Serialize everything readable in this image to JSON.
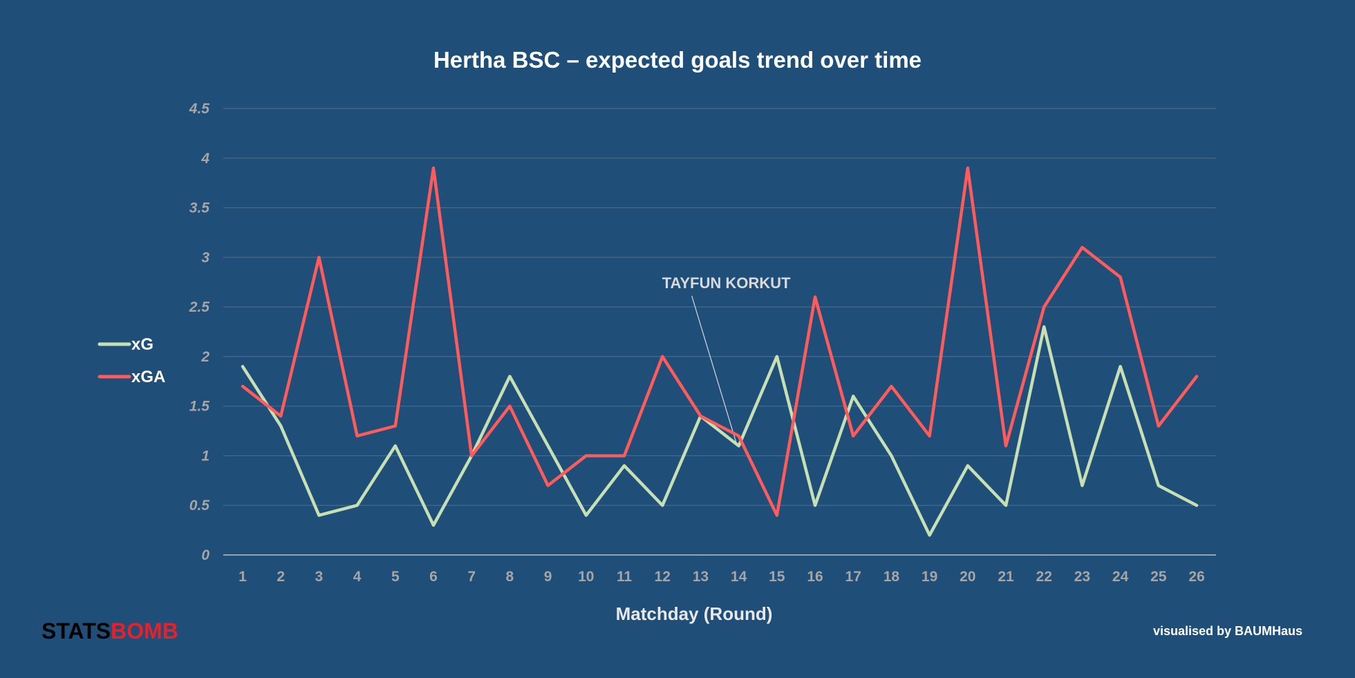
{
  "chart_data": {
    "type": "line",
    "title": "Hertha BSC – expected goals trend over time",
    "xlabel": "Matchday (Round)",
    "ylabel": "",
    "x": [
      1,
      2,
      3,
      4,
      5,
      6,
      7,
      8,
      9,
      10,
      11,
      12,
      13,
      14,
      15,
      16,
      17,
      18,
      19,
      20,
      21,
      22,
      23,
      24,
      25,
      26
    ],
    "ylim": [
      0,
      4.5
    ],
    "yticks": [
      0,
      0.5,
      1,
      1.5,
      2,
      2.5,
      3,
      3.5,
      4,
      4.5
    ],
    "ytick_labels": [
      "0",
      "0.5",
      "1",
      "1.5",
      "2",
      "2.5",
      "3",
      "3.5",
      "4",
      "4.5"
    ],
    "grid": true,
    "legend_position": "left",
    "series": [
      {
        "name": "xG",
        "color": "#c6e0b4",
        "values": [
          1.9,
          1.3,
          0.4,
          0.5,
          1.1,
          0.3,
          1.0,
          1.8,
          1.1,
          0.4,
          0.9,
          0.5,
          1.4,
          1.1,
          2.0,
          0.5,
          1.6,
          1.0,
          0.2,
          0.9,
          0.5,
          2.3,
          0.7,
          1.9,
          0.7,
          0.5
        ]
      },
      {
        "name": "xGA",
        "color": "#ff5b5b",
        "values": [
          1.7,
          1.4,
          3.0,
          1.2,
          1.3,
          3.9,
          1.0,
          1.5,
          0.7,
          1.0,
          1.0,
          2.0,
          1.4,
          1.2,
          0.4,
          2.6,
          1.2,
          1.7,
          1.2,
          3.9,
          1.1,
          2.5,
          3.1,
          2.8,
          1.3,
          1.8
        ]
      }
    ],
    "annotations": [
      {
        "text": "TAYFUN KORKUT",
        "x": 14,
        "y": 1.2
      }
    ]
  },
  "footer": {
    "credit": "visualised by BAUMHaus",
    "logo_part1": "STATS",
    "logo_part2": "BOMB"
  },
  "colors": {
    "background": "#1f4e79",
    "gridline": "#4a6b8a",
    "axis_line": "#bfbfbf",
    "tick_text": "#a6a6a6",
    "logo_red": "#e8202a"
  }
}
